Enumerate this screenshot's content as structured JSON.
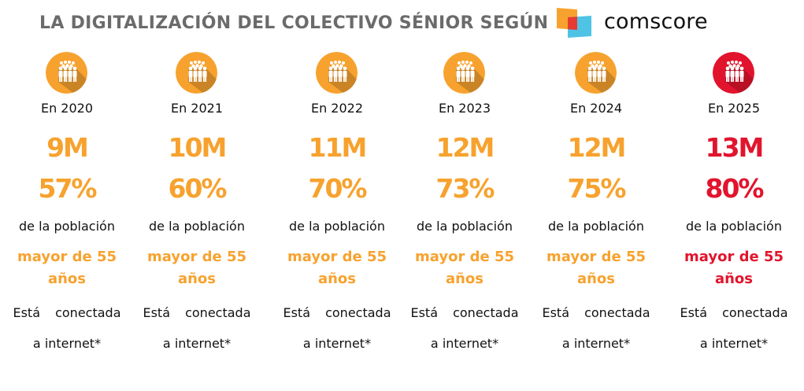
{
  "header": {
    "title": "LA DIGITALIZACIÓN DEL COLECTIVO SÉNIOR SEGÚN",
    "logo_text": "comscore",
    "logo_icon": "comscore-logo-mark"
  },
  "colors": {
    "accent_orange": "#f7a22e",
    "highlight_red": "#e2142d",
    "title_gray": "#6b6b6b",
    "text_black": "#111111",
    "logo_orange": "#f7a22e",
    "logo_red": "#e63a32",
    "logo_blue": "#4fc3e6"
  },
  "columns": [
    {
      "year": "En 2020",
      "millions": "9M",
      "percent": "57%",
      "population": "de la población",
      "age_line1": "mayor de 55",
      "age_line2": "años",
      "connected_line1": "Está conectada",
      "connected_line2": "a internet*",
      "icon": "people-group-icon",
      "highlight": false
    },
    {
      "year": "En 2021",
      "millions": "10M",
      "percent": "60%",
      "population": "de la población",
      "age_line1": "mayor de 55",
      "age_line2": "años",
      "connected_line1": "Está conectada",
      "connected_line2": "a internet*",
      "icon": "people-group-icon",
      "highlight": false
    },
    {
      "year": "En 2022",
      "millions": "11M",
      "percent": "70%",
      "population": "de la población",
      "age_line1": "mayor de 55",
      "age_line2": "años",
      "connected_line1": "Está conectada",
      "connected_line2": "a internet*",
      "icon": "people-group-icon",
      "highlight": false
    },
    {
      "year": "En 2023",
      "millions": "12M",
      "percent": "73%",
      "population": "de la población",
      "age_line1": "mayor de 55",
      "age_line2": "años",
      "connected_line1": "Está conectada",
      "connected_line2": "a internet*",
      "icon": "people-group-icon",
      "highlight": false
    },
    {
      "year": "En 2024",
      "millions": "12M",
      "percent": "75%",
      "population": "de la población",
      "age_line1": "mayor de 55",
      "age_line2": "años",
      "connected_line1": "Está conectada",
      "connected_line2": "a internet*",
      "icon": "people-group-icon",
      "highlight": false
    },
    {
      "year": "En 2025",
      "millions": "13M",
      "percent": "80%",
      "population": "de la población",
      "age_line1": "mayor de 55",
      "age_line2": "años",
      "connected_line1": "Está conectada",
      "connected_line2": "a internet*",
      "icon": "people-group-icon",
      "highlight": true
    }
  ]
}
